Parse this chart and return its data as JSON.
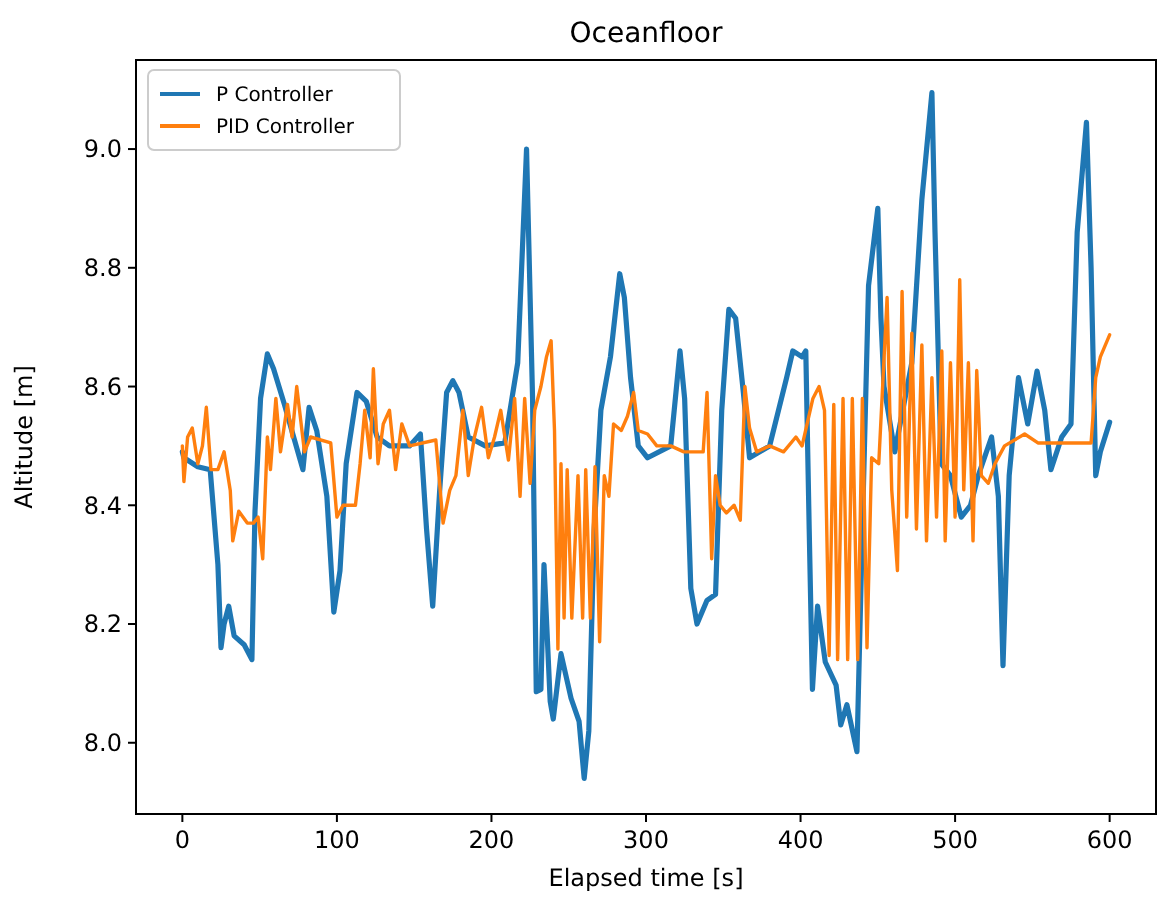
{
  "chart_data": {
    "type": "line",
    "title": "Oceanfloor",
    "xlabel": "Elapsed time [s]",
    "ylabel": "Altitude [m]",
    "xlim": [
      -30,
      630
    ],
    "xticks": [
      0,
      100,
      200,
      300,
      400,
      500,
      600
    ],
    "ylim": [
      7.88,
      9.15
    ],
    "yticks": [
      {
        "value": 8,
        "label": "8.0"
      },
      {
        "value": 8.2,
        "label": "8.2"
      },
      {
        "value": 8.4,
        "label": "8.4"
      },
      {
        "value": 8.6,
        "label": "8.6"
      },
      {
        "value": 8.8,
        "label": "8.8"
      },
      {
        "value": 9,
        "label": "9.0"
      }
    ],
    "grid": false,
    "legend": "top left",
    "marker": "none",
    "line_style": "solid",
    "series": [
      {
        "name": "P Controller",
        "color": "#1f77b4",
        "x": [
          0,
          1,
          10,
          18,
          23,
          25,
          27,
          30,
          33.5,
          40,
          45,
          47,
          50.6,
          55,
          59,
          66,
          72,
          78,
          82,
          87,
          93.5,
          98,
          102,
          106,
          113,
          119,
          126,
          134,
          147,
          154,
          158,
          162,
          166.5,
          171,
          175,
          179,
          185,
          196,
          208.6,
          217,
          222.7,
          226.6,
          229,
          232,
          234,
          238,
          240,
          245,
          251.5,
          256.7,
          260,
          263,
          266.5,
          270.8,
          277,
          283,
          286,
          290,
          295,
          301,
          316,
          322,
          325,
          329,
          333,
          339.5,
          345,
          349,
          353.6,
          358,
          363,
          367,
          380,
          391,
          395,
          401,
          403.4,
          405.6,
          407.7,
          411,
          416,
          423,
          426,
          430,
          436.5,
          440,
          444,
          450,
          452,
          454,
          461,
          472,
          478.5,
          485,
          487,
          491,
          497,
          504,
          510,
          515,
          523.6,
          528,
          531,
          535,
          541,
          547,
          553,
          558,
          562,
          569,
          575,
          579,
          585,
          588,
          591,
          594,
          600
        ],
        "values": [
          8.49,
          8.48,
          8.465,
          8.46,
          8.3,
          8.16,
          8.2,
          8.23,
          8.18,
          8.165,
          8.14,
          8.39,
          8.58,
          8.655,
          8.63,
          8.57,
          8.515,
          8.46,
          8.565,
          8.525,
          8.415,
          8.22,
          8.29,
          8.47,
          8.59,
          8.575,
          8.515,
          8.5,
          8.5,
          8.52,
          8.36,
          8.23,
          8.425,
          8.59,
          8.61,
          8.59,
          8.515,
          8.5,
          8.505,
          8.64,
          9.0,
          8.58,
          8.086,
          8.09,
          8.3,
          8.07,
          8.04,
          8.15,
          8.075,
          8.036,
          7.94,
          8.02,
          8.36,
          8.56,
          8.65,
          8.79,
          8.75,
          8.615,
          8.5,
          8.48,
          8.5,
          8.66,
          8.58,
          8.26,
          8.2,
          8.24,
          8.25,
          8.56,
          8.73,
          8.715,
          8.59,
          8.48,
          8.5,
          8.615,
          8.66,
          8.65,
          8.66,
          8.36,
          8.09,
          8.23,
          8.136,
          8.097,
          8.03,
          8.064,
          7.985,
          8.36,
          8.77,
          8.9,
          8.716,
          8.6,
          8.49,
          8.64,
          8.915,
          9.095,
          8.86,
          8.47,
          8.45,
          8.38,
          8.4,
          8.45,
          8.515,
          8.415,
          8.13,
          8.45,
          8.615,
          8.537,
          8.626,
          8.56,
          8.46,
          8.515,
          8.537,
          8.86,
          9.045,
          8.8,
          8.45,
          8.49,
          8.54
        ]
      },
      {
        "name": "PID Controller",
        "color": "#ff7f0e",
        "x": [
          0,
          1,
          3.4,
          6.4,
          10,
          13,
          15.5,
          18.5,
          23,
          27,
          31,
          32.6,
          36.5,
          42,
          46,
          49,
          52,
          55,
          57,
          60.5,
          63.5,
          68,
          71,
          74,
          79,
          83,
          96,
          100,
          104,
          112,
          115,
          118,
          121.5,
          123.6,
          126.6,
          130,
          134,
          138,
          142,
          147,
          164,
          168.7,
          173,
          177,
          181.5,
          185,
          189,
          193.6,
          198,
          202,
          206,
          211,
          215,
          218.5,
          221.5,
          225,
          228,
          232,
          235.6,
          238.6,
          240.8,
          243,
          245,
          247,
          249,
          252,
          256,
          259,
          261,
          264,
          267,
          270,
          273,
          276,
          279,
          284,
          288,
          292,
          295,
          301,
          307,
          316,
          324.5,
          337,
          339.5,
          342.5,
          345,
          348,
          352,
          357,
          361,
          364,
          367,
          371.6,
          380,
          389,
          397,
          401,
          408,
          412,
          415.5,
          418.5,
          421.5,
          424,
          427.5,
          430.5,
          433.5,
          437,
          440,
          443,
          446,
          450.6,
          456,
          459,
          462.7,
          465.7,
          468.7,
          472,
          475,
          478.5,
          481.5,
          485,
          488,
          491.4,
          493.6,
          497,
          500,
          503,
          505.6,
          508.6,
          511.6,
          514,
          517,
          521.5,
          525.8,
          532,
          545,
          553.6,
          588,
          591,
          594,
          600
        ],
        "values": [
          8.5,
          8.44,
          8.515,
          8.53,
          8.47,
          8.5,
          8.565,
          8.46,
          8.46,
          8.49,
          8.425,
          8.34,
          8.39,
          8.37,
          8.37,
          8.38,
          8.31,
          8.515,
          8.46,
          8.58,
          8.49,
          8.57,
          8.515,
          8.6,
          8.49,
          8.515,
          8.505,
          8.38,
          8.4,
          8.4,
          8.47,
          8.56,
          8.48,
          8.63,
          8.47,
          8.537,
          8.56,
          8.46,
          8.537,
          8.5,
          8.51,
          8.37,
          8.425,
          8.45,
          8.56,
          8.45,
          8.515,
          8.565,
          8.48,
          8.515,
          8.56,
          8.476,
          8.58,
          8.415,
          8.58,
          8.437,
          8.56,
          8.6,
          8.65,
          8.677,
          8.526,
          8.158,
          8.47,
          8.21,
          8.46,
          8.21,
          8.45,
          8.21,
          8.46,
          8.21,
          8.465,
          8.17,
          8.45,
          8.415,
          8.537,
          8.526,
          8.55,
          8.59,
          8.526,
          8.52,
          8.5,
          8.5,
          8.49,
          8.49,
          8.59,
          8.31,
          8.45,
          8.4,
          8.387,
          8.4,
          8.375,
          8.6,
          8.53,
          8.49,
          8.5,
          8.49,
          8.515,
          8.5,
          8.58,
          8.6,
          8.56,
          8.147,
          8.57,
          8.14,
          8.58,
          8.14,
          8.58,
          8.14,
          8.58,
          8.16,
          8.48,
          8.47,
          8.75,
          8.426,
          8.29,
          8.76,
          8.38,
          8.69,
          8.36,
          8.67,
          8.34,
          8.615,
          8.38,
          8.66,
          8.34,
          8.64,
          8.38,
          8.78,
          8.426,
          8.64,
          8.34,
          8.627,
          8.45,
          8.437,
          8.47,
          8.5,
          8.52,
          8.505,
          8.505,
          8.615,
          8.65,
          8.687
        ]
      }
    ]
  }
}
